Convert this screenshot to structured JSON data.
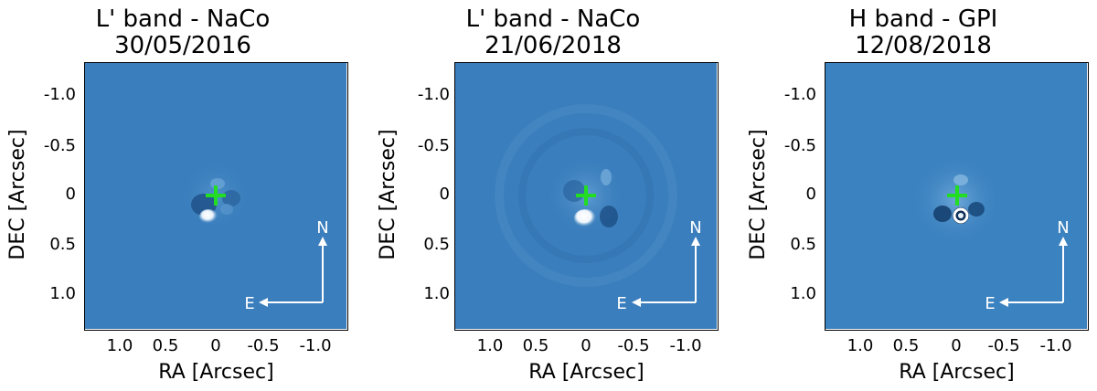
{
  "panels": [
    {
      "title_line1": "L' band - NaCo",
      "title_line2": "30/05/2016",
      "ylabel": "DEC [Arcsec]",
      "xlabel": "RA [Arcsec]",
      "yticks": [
        "-1.0",
        "-0.5",
        "0",
        "0.5",
        "1.0"
      ],
      "xticks": [
        "1.0",
        "0.5",
        "0",
        "-0.5",
        "-1.0"
      ],
      "compass_n": "N",
      "compass_e": "E",
      "background_color": "#3a7ebd",
      "marker_color": "#22dd22"
    },
    {
      "title_line1": "L' band - NaCo",
      "title_line2": "21/06/2018",
      "ylabel": "DEC [Arcsec]",
      "xlabel": "RA [Arcsec]",
      "yticks": [
        "-1.0",
        "-0.5",
        "0",
        "0.5",
        "1.0"
      ],
      "xticks": [
        "1.0",
        "0.5",
        "0",
        "-0.5",
        "-1.0"
      ],
      "compass_n": "N",
      "compass_e": "E",
      "background_color": "#3a7ebd",
      "marker_color": "#22dd22"
    },
    {
      "title_line1": "H band - GPI",
      "title_line2": "12/08/2018",
      "ylabel": "DEC [Arcsec]",
      "xlabel": "RA [Arcsec]",
      "yticks": [
        "-1.0",
        "-0.5",
        "0",
        "0.5",
        "1.0"
      ],
      "xticks": [
        "1.0",
        "0.5",
        "0",
        "-0.5",
        "-1.0"
      ],
      "compass_n": "N",
      "compass_e": "E",
      "background_color": "#3b82c0",
      "marker_color": "#22dd22"
    }
  ]
}
